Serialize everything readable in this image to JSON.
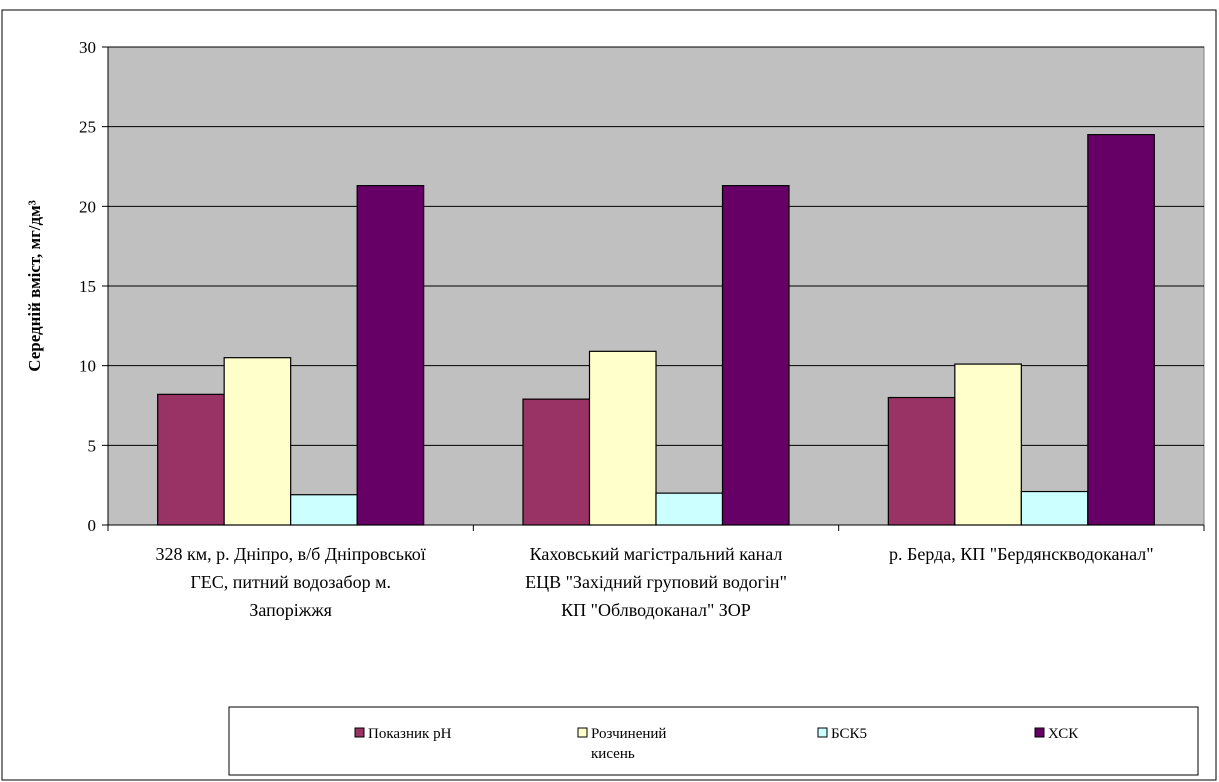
{
  "chart_data": {
    "type": "bar",
    "title": "",
    "xlabel": "",
    "ylabel": "Середній вміст, мг/дм³",
    "ylim": [
      0,
      30
    ],
    "yticks": [
      0,
      5,
      10,
      15,
      20,
      25,
      30
    ],
    "grid": true,
    "legend_position": "bottom",
    "categories": [
      [
        "328 км, р. Дніпро, в/б Дніпровської",
        "ГЕС, питний водозабор м.",
        "Запоріжжя"
      ],
      [
        "Каховський магістральний канал",
        "ЕЦВ \"Західний груповий водогін\"",
        "КП \"Облводоканал\" ЗОР"
      ],
      [
        "р. Берда, КП \"Бердянскводоканал\""
      ]
    ],
    "series": [
      {
        "name": "Показник рН",
        "legend_lines": [
          "Показник рН"
        ],
        "color": "#993366",
        "values": [
          8.2,
          7.9,
          8.0
        ]
      },
      {
        "name": "Розчинений кисень",
        "legend_lines": [
          "Розчинений",
          "кисень"
        ],
        "color": "#FFFFCC",
        "values": [
          10.5,
          10.9,
          10.1
        ]
      },
      {
        "name": "БСК5",
        "legend_lines": [
          "БСК5"
        ],
        "color": "#CCFFFF",
        "values": [
          1.9,
          2.0,
          2.1
        ]
      },
      {
        "name": "ХСК",
        "legend_lines": [
          "ХСК"
        ],
        "color": "#660066",
        "values": [
          21.3,
          21.3,
          24.5
        ]
      }
    ],
    "plot_background": "#C0C0C0"
  }
}
